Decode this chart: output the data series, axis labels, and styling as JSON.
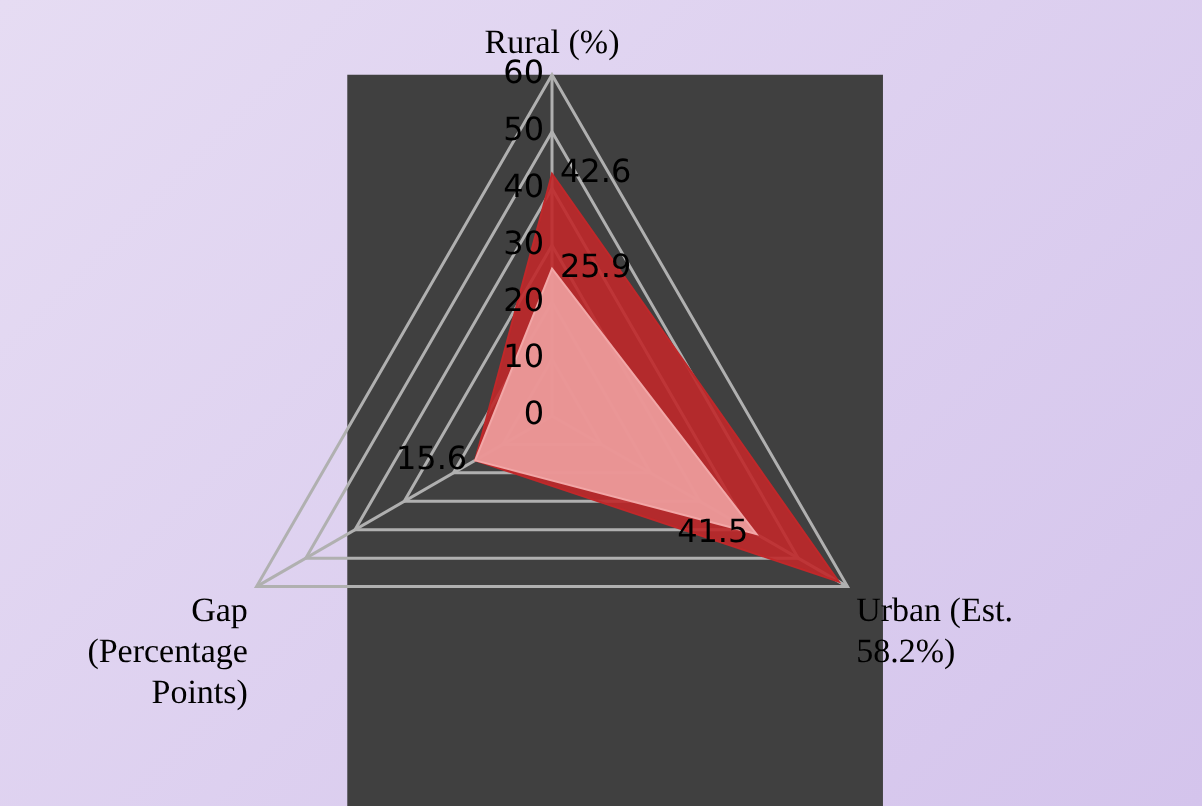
{
  "chart_data": {
    "type": "radar",
    "categories": [
      "Rural (%)",
      "Urban (Est. 58.2%)",
      "Gap (Percentage Points)"
    ],
    "ylim": [
      0,
      60
    ],
    "yticks": [
      0,
      10,
      20,
      30,
      40,
      50,
      60
    ],
    "grid": true,
    "legend": false,
    "marker": "none",
    "series": [
      {
        "color": "#c0282a",
        "values": [
          42.6,
          58.2,
          15.6
        ],
        "value_labels": [
          "42.6",
          null,
          null
        ]
      },
      {
        "color": "#f2a7a7",
        "values": [
          25.9,
          41.5,
          15.6
        ],
        "value_labels": [
          "25.9",
          "41.5",
          "15.6"
        ]
      }
    ]
  }
}
